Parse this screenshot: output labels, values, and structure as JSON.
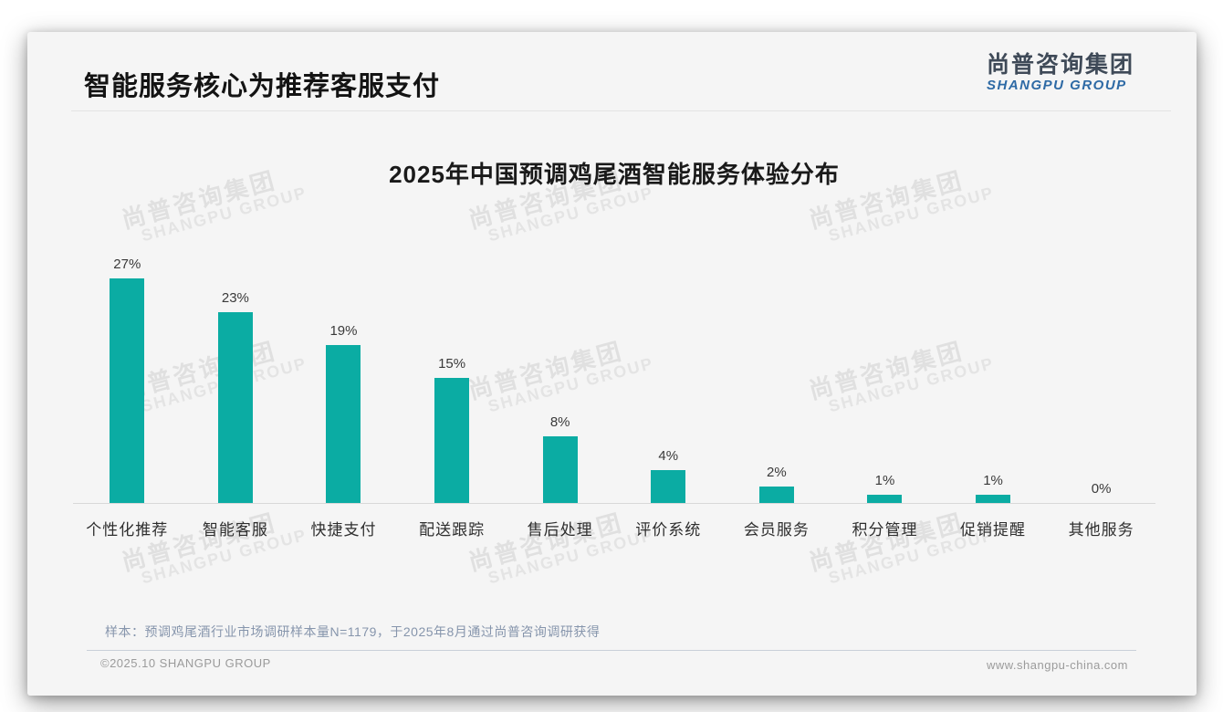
{
  "slide": {
    "title": "智能服务核心为推荐客服支付",
    "logo": {
      "cn": "尚普咨询集团",
      "en": "SHANGPU GROUP"
    },
    "watermark": {
      "cn": "尚普咨询集团",
      "en": "SHANGPU GROUP"
    },
    "footnote": "样本：预调鸡尾酒行业市场调研样本量N=1179，于2025年8月通过尚普咨询调研获得",
    "footer": {
      "left": "©2025.10 SHANGPU GROUP",
      "right": "www.shangpu-china.com"
    }
  },
  "colors": {
    "bar": "#0baca3",
    "logo_cn": "#3f4a58",
    "logo_en": "#2e6aa5",
    "footnote_text": "#8695ac",
    "footer_text": "#9b9b9b",
    "slide_background": "#f5f5f5"
  },
  "chart_data": {
    "type": "bar",
    "title": "2025年中国预调鸡尾酒智能服务体验分布",
    "categories": [
      "个性化推荐",
      "智能客服",
      "快捷支付",
      "配送跟踪",
      "售后处理",
      "评价系统",
      "会员服务",
      "积分管理",
      "促销提醒",
      "其他服务"
    ],
    "values": [
      27,
      23,
      19,
      15,
      8,
      4,
      2,
      1,
      1,
      0
    ],
    "data_labels": [
      "27%",
      "23%",
      "19%",
      "15%",
      "8%",
      "4%",
      "2%",
      "1%",
      "1%",
      "0%"
    ],
    "unit": "%",
    "xlabel": "",
    "ylabel": "",
    "ylim": [
      0,
      30
    ],
    "grid": false,
    "legend": false,
    "bar_color": "#0baca3"
  }
}
